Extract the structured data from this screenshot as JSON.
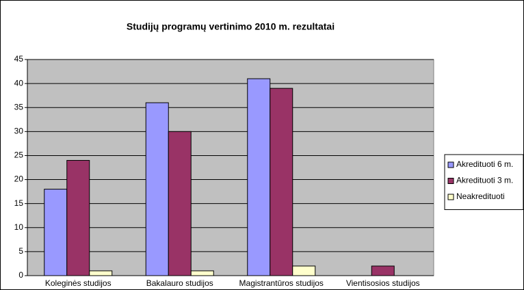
{
  "chart_data": {
    "type": "bar",
    "title": "Studijų programų vertinimo 2010 m. rezultatai",
    "categories": [
      "Koleginės studijos",
      "Bakalauro studijos",
      "Magistrantūros studijos",
      "Vientisosios studijos"
    ],
    "series": [
      {
        "name": "Akredituoti 6 m.",
        "color": "#9999ff",
        "values": [
          18,
          36,
          41,
          0
        ]
      },
      {
        "name": "Akredituoti 3 m.",
        "color": "#993366",
        "values": [
          24,
          30,
          39,
          2
        ]
      },
      {
        "name": "Neakredituoti",
        "color": "#ffffcc",
        "values": [
          1,
          1,
          2,
          0
        ]
      }
    ],
    "ylim": [
      0,
      45
    ],
    "yticks": [
      0,
      5,
      10,
      15,
      20,
      25,
      30,
      35,
      40,
      45
    ],
    "grid": true,
    "legend": "right"
  }
}
